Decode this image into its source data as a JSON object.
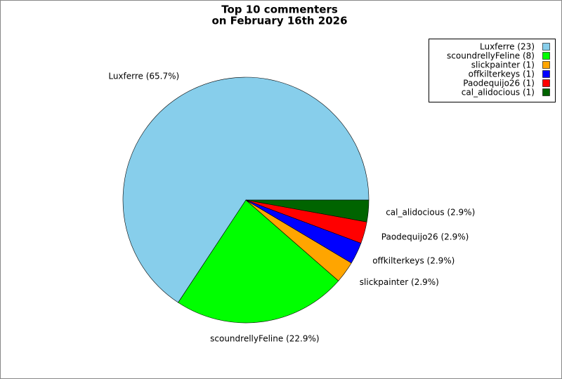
{
  "chart_data": {
    "type": "pie",
    "title": [
      "Top 10 commenters",
      "on February 16th 2026"
    ],
    "categories": [
      "Luxferre",
      "scoundrellyFeline",
      "slickpainter",
      "offkilterkeys",
      "Paodequijo26",
      "cal_alidocious"
    ],
    "values": [
      23,
      8,
      1,
      1,
      1,
      1
    ],
    "legend_labels": [
      "Luxferre (23)",
      "scoundrellyFeline (8)",
      "slickpainter (1)",
      "offkilterkeys (1)",
      "Paodequijo26 (1)",
      "cal_alidocious (1)"
    ],
    "slice_labels": [
      "Luxferre (65.7%)",
      "scoundrellyFeline (22.9%)",
      "slickpainter (2.9%)",
      "offkilterkeys (2.9%)",
      "Paodequijo26 (2.9%)",
      "cal_alidocious (2.9%)"
    ],
    "colors": [
      "#87ceeb",
      "#00ff00",
      "#ffa500",
      "#0000ff",
      "#ff0000",
      "#006400"
    ],
    "legend": "upper right"
  }
}
